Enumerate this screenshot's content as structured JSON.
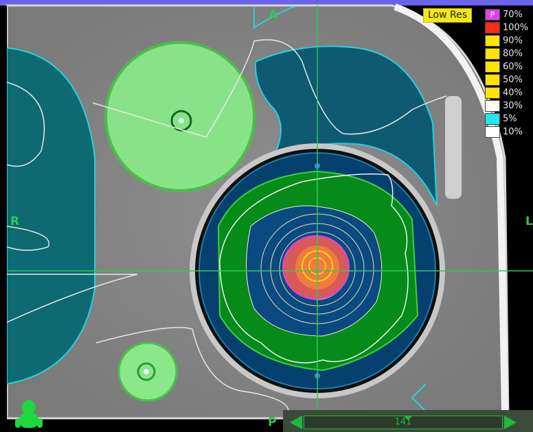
{
  "orientation": {
    "anterior": "A",
    "posterior": "P",
    "right": "R",
    "left": "L"
  },
  "low_res_label": "Low Res",
  "legend": [
    {
      "label": "70%",
      "color": "#e040e8",
      "swatch_text": "P"
    },
    {
      "label": "100%",
      "color": "#ff2a10",
      "swatch_text": ""
    },
    {
      "label": "90%",
      "color": "#ffe400",
      "swatch_text": ""
    },
    {
      "label": "80%",
      "color": "#ffe400",
      "swatch_text": ""
    },
    {
      "label": "60%",
      "color": "#ffe400",
      "swatch_text": ""
    },
    {
      "label": "50%",
      "color": "#ffe400",
      "swatch_text": ""
    },
    {
      "label": "40%",
      "color": "#ffe400",
      "swatch_text": ""
    },
    {
      "label": "30%",
      "color": "#ffffff",
      "swatch_text": ""
    },
    {
      "label": "5%",
      "color": "#22e6f0",
      "swatch_text": ""
    },
    {
      "label": "10%",
      "color": "#ffffff",
      "swatch_text": ""
    }
  ],
  "slice": {
    "value": "141"
  },
  "colors": {
    "top_bar": "#6b63ea",
    "crosshair": "#2fc85a",
    "structure_teal": "#0d6a72",
    "structure_green": "#8ae88a"
  }
}
